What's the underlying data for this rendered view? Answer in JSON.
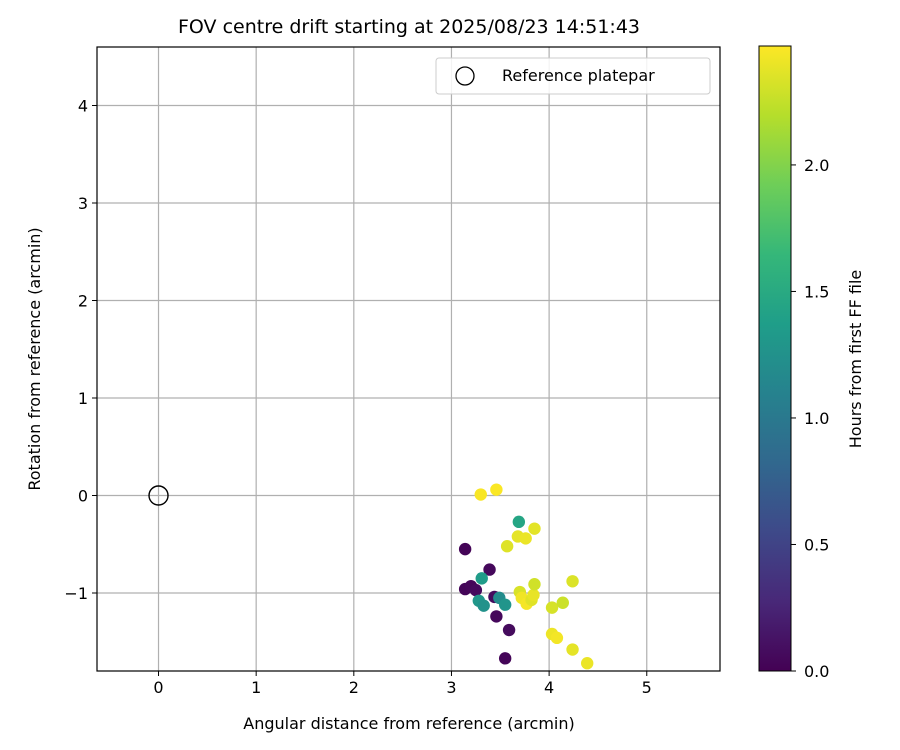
{
  "chart_data": {
    "type": "scatter",
    "title": "FOV centre drift starting at 2025/08/23 14:51:43",
    "xlabel": "Angular distance from reference (arcmin)",
    "ylabel": "Rotation from reference (arcmin)",
    "xlim": [
      -0.63,
      5.75
    ],
    "ylim": [
      -1.8,
      4.6
    ],
    "xticks": [
      0,
      1,
      2,
      3,
      4,
      5
    ],
    "yticks": [
      4,
      3,
      2,
      1,
      0,
      -1
    ],
    "xtick_labels": [
      "0",
      "1",
      "2",
      "3",
      "4",
      "5"
    ],
    "ytick_labels": [
      "4",
      "3",
      "2",
      "1",
      "0",
      "−1"
    ],
    "grid": true,
    "legend": {
      "position": "top-right",
      "label": "Reference platepar"
    },
    "reference_point": {
      "x": 0,
      "y": 0
    },
    "colorbar": {
      "label": "Hours from first FF file",
      "colormap": "viridis",
      "range": [
        0,
        2.47
      ],
      "ticks": [
        0.0,
        0.5,
        1.0,
        1.5,
        2.0
      ],
      "tick_labels": [
        "0.0",
        "0.5",
        "1.0",
        "1.5",
        "2.0"
      ],
      "stops": [
        "#440154",
        "#482878",
        "#3e4989",
        "#31688e",
        "#26828e",
        "#1f9e89",
        "#35b779",
        "#6ece58",
        "#b5de2b",
        "#fde725"
      ]
    },
    "points": [
      {
        "x": 3.14,
        "y": -0.55,
        "c": 0.02
      },
      {
        "x": 3.39,
        "y": -0.76,
        "c": 0.05
      },
      {
        "x": 3.14,
        "y": -0.96,
        "c": 0.03
      },
      {
        "x": 3.2,
        "y": -0.93,
        "c": 0.04
      },
      {
        "x": 3.25,
        "y": -0.97,
        "c": 0.06
      },
      {
        "x": 3.44,
        "y": -1.04,
        "c": 0.08
      },
      {
        "x": 3.46,
        "y": -1.24,
        "c": 0.05
      },
      {
        "x": 3.59,
        "y": -1.38,
        "c": 0.07
      },
      {
        "x": 3.55,
        "y": -1.67,
        "c": 0.03
      },
      {
        "x": 3.31,
        "y": -0.85,
        "c": 1.35
      },
      {
        "x": 3.28,
        "y": -1.08,
        "c": 1.3
      },
      {
        "x": 3.33,
        "y": -1.13,
        "c": 1.25
      },
      {
        "x": 3.49,
        "y": -1.05,
        "c": 1.2
      },
      {
        "x": 3.55,
        "y": -1.12,
        "c": 1.28
      },
      {
        "x": 3.69,
        "y": -0.27,
        "c": 1.45
      },
      {
        "x": 3.3,
        "y": 0.01,
        "c": 2.45
      },
      {
        "x": 3.46,
        "y": 0.06,
        "c": 2.46
      },
      {
        "x": 3.57,
        "y": -0.52,
        "c": 2.35
      },
      {
        "x": 3.68,
        "y": -0.42,
        "c": 2.38
      },
      {
        "x": 3.76,
        "y": -0.44,
        "c": 2.4
      },
      {
        "x": 3.85,
        "y": -0.34,
        "c": 2.37
      },
      {
        "x": 3.7,
        "y": -0.99,
        "c": 2.33
      },
      {
        "x": 3.72,
        "y": -1.05,
        "c": 2.42
      },
      {
        "x": 3.77,
        "y": -1.11,
        "c": 2.44
      },
      {
        "x": 3.82,
        "y": -1.07,
        "c": 2.36
      },
      {
        "x": 3.84,
        "y": -1.02,
        "c": 2.39
      },
      {
        "x": 3.85,
        "y": -0.91,
        "c": 2.3
      },
      {
        "x": 4.03,
        "y": -1.15,
        "c": 2.32
      },
      {
        "x": 4.14,
        "y": -1.1,
        "c": 2.28
      },
      {
        "x": 4.24,
        "y": -0.88,
        "c": 2.34
      },
      {
        "x": 4.03,
        "y": -1.42,
        "c": 2.41
      },
      {
        "x": 4.08,
        "y": -1.46,
        "c": 2.43
      },
      {
        "x": 4.24,
        "y": -1.58,
        "c": 2.38
      },
      {
        "x": 4.39,
        "y": -1.72,
        "c": 2.4
      }
    ]
  }
}
